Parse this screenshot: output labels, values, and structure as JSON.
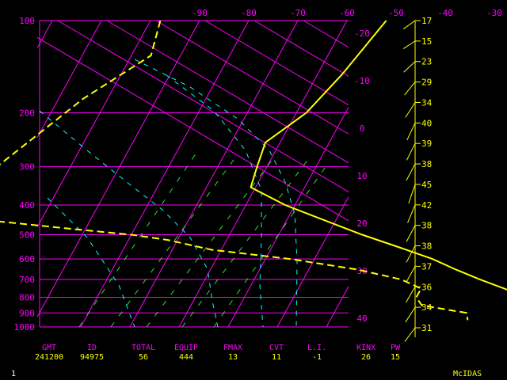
{
  "chart_data": {
    "type": "line",
    "title": "",
    "xlabel": "",
    "ylabel": "",
    "pressure_ticks": [
      100,
      200,
      300,
      400,
      500,
      600,
      700,
      800,
      900,
      1000
    ],
    "temp_ticks_top": [
      -90,
      -80,
      -70,
      -60,
      -50,
      -40,
      -30
    ],
    "isotherm_right_labels": [
      -20,
      -10,
      0,
      10,
      20,
      30,
      40
    ],
    "isotherms_c": [
      -130,
      -120,
      -110,
      -100,
      -90,
      -80,
      -70,
      -60,
      -50,
      -40,
      -30,
      -20,
      -10,
      0,
      10,
      20,
      30,
      40
    ],
    "series": [
      {
        "color": "#ffff00",
        "style": "solid",
        "points": [
          [
            100,
            -52
          ],
          [
            150,
            -55
          ],
          [
            200,
            -58
          ],
          [
            250,
            -63
          ],
          [
            300,
            -62
          ],
          [
            350,
            -61
          ],
          [
            400,
            -52
          ],
          [
            450,
            -42
          ],
          [
            500,
            -33
          ],
          [
            550,
            -24
          ],
          [
            600,
            -16
          ],
          [
            650,
            -10
          ],
          [
            700,
            -4
          ],
          [
            750,
            2
          ],
          [
            800,
            7
          ],
          [
            850,
            11
          ],
          [
            900,
            15
          ],
          [
            950,
            20
          ],
          [
            1000,
            25
          ]
        ]
      },
      {
        "color": "#ffff00",
        "style": "dashed",
        "points": [
          [
            100,
            -98
          ],
          [
            130,
            -96
          ],
          [
            180,
            -105
          ],
          [
            430,
            -122
          ],
          [
            450,
            -110
          ],
          [
            480,
            -92
          ],
          [
            500,
            -80
          ],
          [
            520,
            -72
          ],
          [
            560,
            -62
          ],
          [
            600,
            -45
          ],
          [
            650,
            -30
          ],
          [
            700,
            -20
          ],
          [
            750,
            -15
          ],
          [
            800,
            -15
          ],
          [
            850,
            -13
          ],
          [
            900,
            -3
          ],
          [
            950,
            -2
          ]
        ]
      }
    ],
    "wind_levels": [
      17,
      15,
      23,
      29,
      34,
      40,
      39,
      38,
      45,
      42,
      38,
      38,
      37,
      36,
      34,
      31
    ],
    "stats_headers": [
      "GMT",
      "ID",
      "TOTAL",
      "EQUIP",
      "FMAX",
      "CVT",
      "L.I.",
      "KINX",
      "PW"
    ],
    "stats_values": [
      "241200",
      "94975",
      "56",
      "444",
      "13",
      "11",
      "-1",
      "26",
      "15"
    ]
  },
  "footer": {
    "left": "1",
    "right": "McIDAS"
  }
}
